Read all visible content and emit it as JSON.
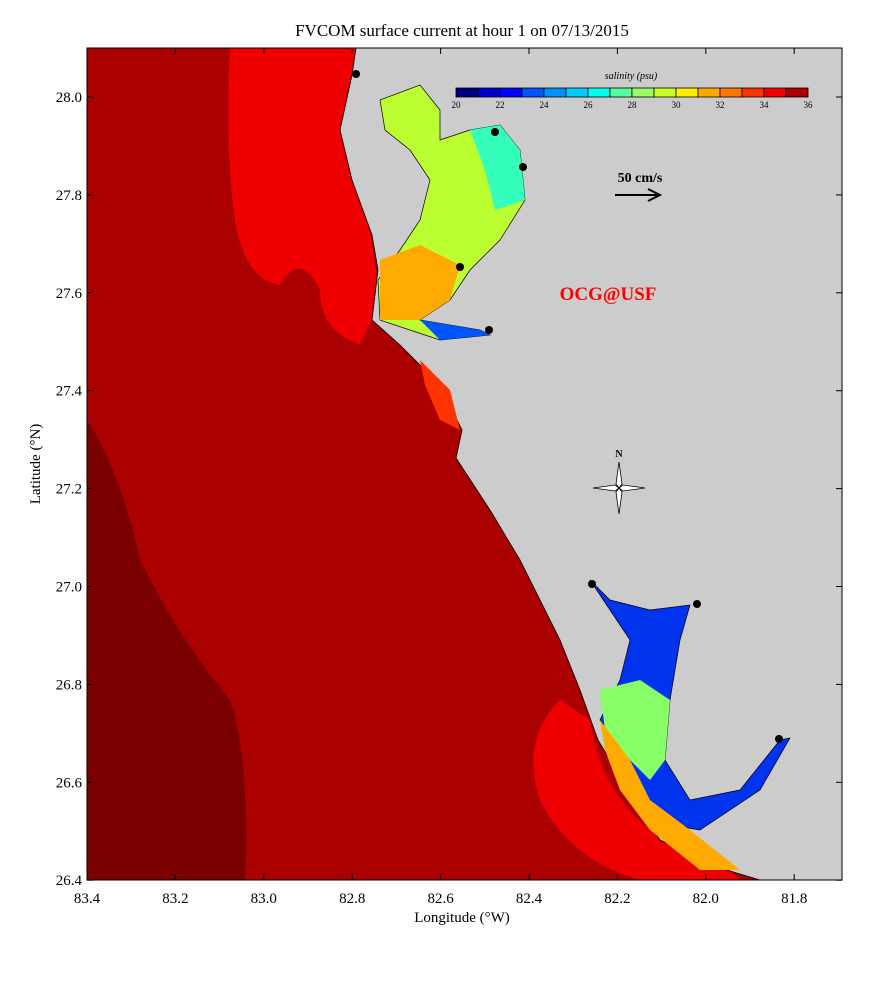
{
  "title": "FVCOM surface current at hour 1 on 07/13/2015",
  "xlabel": "Longitude (°W)",
  "ylabel": "Latitude (°N)",
  "x_ticks": [
    "83.4",
    "83.2",
    "83.0",
    "82.8",
    "82.6",
    "82.4",
    "82.2",
    "82.0",
    "81.8"
  ],
  "y_ticks": [
    "28.0",
    "27.8",
    "27.6",
    "27.4",
    "27.2",
    "27.0",
    "26.8",
    "26.6",
    "26.4"
  ],
  "colorbar": {
    "label": "salinity (psu)",
    "ticks": [
      "20",
      "22",
      "24",
      "26",
      "28",
      "30",
      "32",
      "34",
      "36"
    ],
    "colors": [
      "#000080",
      "#0000cc",
      "#0000ff",
      "#0055ff",
      "#0090ff",
      "#00ccff",
      "#00ffee",
      "#55ff99",
      "#99ff66",
      "#ccff22",
      "#ffee00",
      "#ffaa00",
      "#ff7700",
      "#ff3300",
      "#ee0000",
      "#aa0000"
    ]
  },
  "scale_arrow_label": "50 cm/s",
  "watermark": "OCG@USF",
  "north_label": "N",
  "colors": {
    "land": "#cccccc",
    "ocean": "#aa0000",
    "ocean_deep": "#7a0000",
    "nearshore": "#ee0000",
    "watermark": "#ff0000"
  }
}
